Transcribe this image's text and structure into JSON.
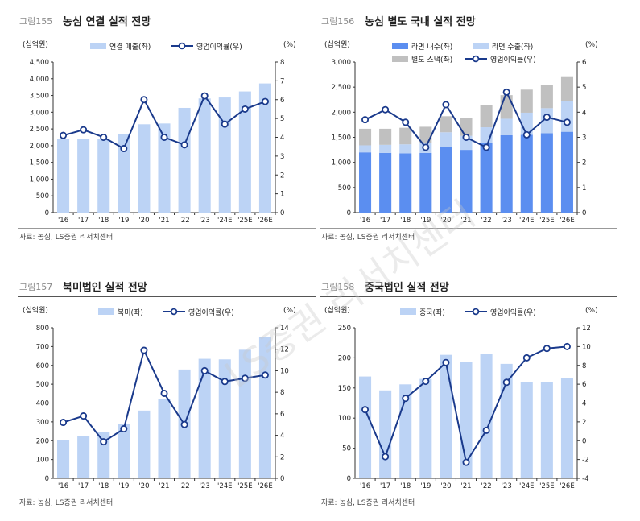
{
  "source_text": "자료: 농심, LS증권 리서치센터",
  "watermark": "LS증권 리서치센터",
  "colors": {
    "bar_light": "#bcd3f5",
    "bar_blue": "#5b8ef0",
    "bar_grey": "#c0c0c0",
    "line": "#1a3a8c"
  },
  "panels": [
    {
      "fig": "그림155",
      "title": "농심 연결 실적 전망"
    },
    {
      "fig": "그림156",
      "title": "농심 별도 국내 실적 전망"
    },
    {
      "fig": "그림157",
      "title": "북미법인 실적 전망"
    },
    {
      "fig": "그림158",
      "title": "중국법인 실적 전망"
    }
  ],
  "chart_data": [
    {
      "type": "bar",
      "categories": [
        "'16",
        "'17",
        "'18",
        "'19",
        "'20",
        "'21",
        "'22",
        "'23",
        "'24E",
        "'25E",
        "'26E"
      ],
      "left_unit": "(십억원)",
      "right_unit": "(%)",
      "ylim": [
        0,
        4500
      ],
      "yticks": [
        "0",
        "500",
        "1,000",
        "1,500",
        "2,000",
        "2,500",
        "3,000",
        "3,500",
        "4,000",
        "4,500"
      ],
      "y2lim": [
        0,
        8
      ],
      "y2ticks": [
        "0",
        "1",
        "2",
        "3",
        "4",
        "5",
        "6",
        "7",
        "8"
      ],
      "series": [
        {
          "name": "연결 매출(좌)",
          "kind": "bar",
          "values": [
            2208,
            2201,
            2206,
            2344,
            2640,
            2663,
            3129,
            3411,
            3440,
            3620,
            3860
          ]
        },
        {
          "name": "영업이익률(우)",
          "kind": "line",
          "values": [
            4.1,
            4.4,
            4.0,
            3.4,
            6.0,
            4.0,
            3.6,
            6.2,
            4.7,
            5.5,
            5.9
          ]
        }
      ]
    },
    {
      "type": "bar",
      "categories": [
        "'16",
        "'17",
        "'18",
        "'19",
        "'20",
        "'21",
        "'22",
        "'23",
        "'24E",
        "'25E",
        "'26E"
      ],
      "left_unit": "(십억원)",
      "right_unit": "(%)",
      "ylim": [
        0,
        3000
      ],
      "yticks": [
        "0",
        "500",
        "1,000",
        "1,500",
        "2,000",
        "2,500",
        "3,000"
      ],
      "y2lim": [
        0,
        6
      ],
      "y2ticks": [
        "0",
        "1",
        "2",
        "3",
        "4",
        "5",
        "6"
      ],
      "series": [
        {
          "name": "라면 내수(좌)",
          "kind": "bar",
          "values": [
            1200,
            1190,
            1180,
            1190,
            1310,
            1250,
            1390,
            1540,
            1550,
            1580,
            1610
          ]
        },
        {
          "name": "라면 수출(좌)",
          "kind": "bar",
          "values": [
            140,
            160,
            180,
            200,
            290,
            280,
            310,
            330,
            440,
            500,
            610
          ]
        },
        {
          "name": "별도 스낵(좌)",
          "kind": "bar",
          "values": [
            330,
            320,
            330,
            320,
            320,
            360,
            440,
            470,
            460,
            460,
            480
          ]
        },
        {
          "name": "영업이익률(우)",
          "kind": "line",
          "values": [
            3.7,
            4.1,
            3.6,
            2.6,
            4.3,
            3.0,
            2.6,
            4.8,
            3.1,
            3.8,
            3.6
          ]
        }
      ]
    },
    {
      "type": "bar",
      "categories": [
        "'16",
        "'17",
        "'18",
        "'19",
        "'20",
        "'21",
        "'22",
        "'23",
        "'24E",
        "'25E",
        "'26E"
      ],
      "left_unit": "(십억원)",
      "right_unit": "(%)",
      "ylim": [
        0,
        800
      ],
      "yticks": [
        "0",
        "100",
        "200",
        "300",
        "400",
        "500",
        "600",
        "700",
        "800"
      ],
      "y2lim": [
        0,
        14
      ],
      "y2ticks": [
        "0",
        "2",
        "4",
        "6",
        "8",
        "10",
        "12",
        "14"
      ],
      "series": [
        {
          "name": "북미(좌)",
          "kind": "bar",
          "values": [
            205,
            225,
            245,
            290,
            360,
            420,
            578,
            635,
            632,
            683,
            750
          ]
        },
        {
          "name": "영업이익률(우)",
          "kind": "line",
          "values": [
            5.2,
            5.8,
            3.4,
            4.6,
            11.9,
            7.9,
            5.0,
            10.0,
            9.0,
            9.3,
            9.6
          ]
        }
      ]
    },
    {
      "type": "bar",
      "categories": [
        "'16",
        "'17",
        "'18",
        "'19",
        "'20",
        "'21",
        "'22",
        "'23",
        "'24E",
        "'25E",
        "'26E"
      ],
      "left_unit": "(십억원)",
      "right_unit": "(%)",
      "ylim": [
        0,
        250
      ],
      "yticks": [
        "0",
        "50",
        "100",
        "150",
        "200",
        "250"
      ],
      "y2lim": [
        -4,
        12
      ],
      "y2ticks": [
        "-4",
        "-2",
        "0",
        "2",
        "4",
        "6",
        "8",
        "10",
        "12"
      ],
      "series": [
        {
          "name": "중국(좌)",
          "kind": "bar",
          "values": [
            169,
            146,
            156,
            165,
            205,
            193,
            206,
            190,
            160,
            160,
            167
          ]
        },
        {
          "name": "영업이익률(우)",
          "kind": "line",
          "values": [
            3.3,
            -1.7,
            4.5,
            6.3,
            8.3,
            -2.3,
            1.1,
            6.2,
            8.8,
            9.8,
            10.0
          ]
        }
      ]
    }
  ]
}
